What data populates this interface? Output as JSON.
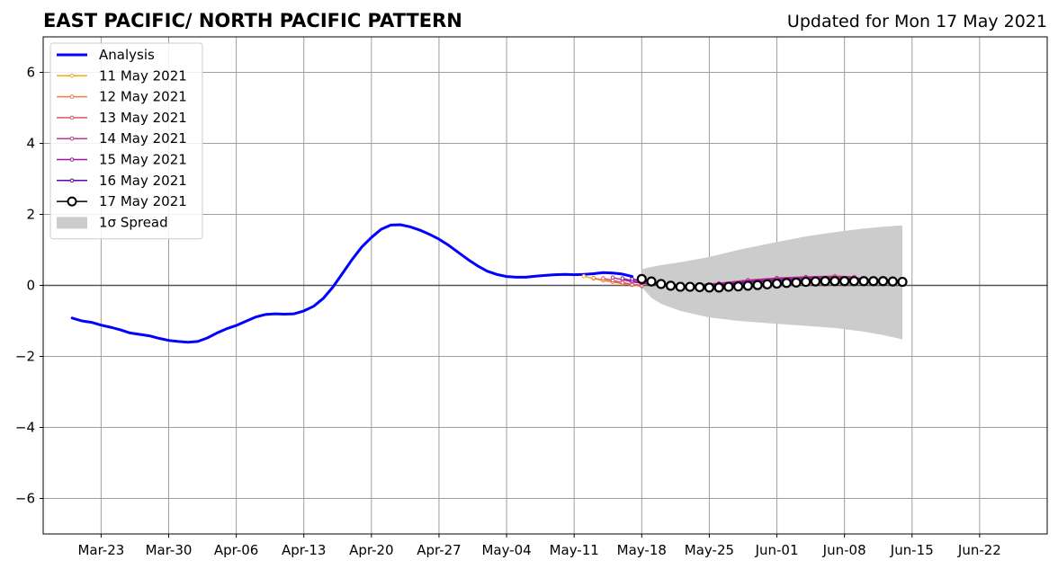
{
  "chart_data": {
    "type": "line",
    "title": "EAST PACIFIC/ NORTH PACIFIC PATTERN",
    "subtitle": "Updated for Mon 17 May 2021",
    "xlabel": "",
    "ylabel": "",
    "ylim": [
      -7,
      7
    ],
    "xlim": [
      "2021-03-17",
      "2021-06-29"
    ],
    "x_ticks": [
      "Mar-23",
      "Mar-30",
      "Apr-06",
      "Apr-13",
      "Apr-20",
      "Apr-27",
      "May-04",
      "May-11",
      "May-18",
      "May-25",
      "Jun-01",
      "Jun-08",
      "Jun-15",
      "Jun-22"
    ],
    "x_tick_dates": [
      "2021-03-23",
      "2021-03-30",
      "2021-04-06",
      "2021-04-13",
      "2021-04-20",
      "2021-04-27",
      "2021-05-04",
      "2021-05-11",
      "2021-05-18",
      "2021-05-25",
      "2021-06-01",
      "2021-06-08",
      "2021-06-15",
      "2021-06-22"
    ],
    "y_ticks": [
      -6,
      -4,
      -2,
      0,
      2,
      4,
      6
    ],
    "y_tick_labels": [
      "−6",
      "−4",
      "−2",
      "0",
      "2",
      "4",
      "6"
    ],
    "grid": true,
    "legend_position": "top-left",
    "series": [
      {
        "name": "Analysis",
        "color": "#0000ff",
        "points": [
          [
            "2021-03-20",
            -0.92
          ],
          [
            "2021-03-21",
            -1.0
          ],
          [
            "2021-03-22",
            -1.04
          ],
          [
            "2021-03-23",
            -1.12
          ],
          [
            "2021-03-24",
            -1.18
          ],
          [
            "2021-03-25",
            -1.25
          ],
          [
            "2021-03-26",
            -1.34
          ],
          [
            "2021-03-27",
            -1.38
          ],
          [
            "2021-03-28",
            -1.42
          ],
          [
            "2021-03-29",
            -1.49
          ],
          [
            "2021-03-30",
            -1.55
          ],
          [
            "2021-03-31",
            -1.58
          ],
          [
            "2021-04-01",
            -1.6
          ],
          [
            "2021-04-02",
            -1.58
          ],
          [
            "2021-04-03",
            -1.48
          ],
          [
            "2021-04-04",
            -1.34
          ],
          [
            "2021-04-05",
            -1.22
          ],
          [
            "2021-04-06",
            -1.13
          ],
          [
            "2021-04-07",
            -1.01
          ],
          [
            "2021-04-08",
            -0.89
          ],
          [
            "2021-04-09",
            -0.82
          ],
          [
            "2021-04-10",
            -0.8
          ],
          [
            "2021-04-11",
            -0.81
          ],
          [
            "2021-04-12",
            -0.8
          ],
          [
            "2021-04-13",
            -0.72
          ],
          [
            "2021-04-14",
            -0.59
          ],
          [
            "2021-04-15",
            -0.37
          ],
          [
            "2021-04-16",
            -0.05
          ],
          [
            "2021-04-17",
            0.34
          ],
          [
            "2021-04-18",
            0.73
          ],
          [
            "2021-04-19",
            1.08
          ],
          [
            "2021-04-20",
            1.35
          ],
          [
            "2021-04-21",
            1.58
          ],
          [
            "2021-04-22",
            1.7
          ],
          [
            "2021-04-23",
            1.71
          ],
          [
            "2021-04-24",
            1.65
          ],
          [
            "2021-04-25",
            1.56
          ],
          [
            "2021-04-26",
            1.44
          ],
          [
            "2021-04-27",
            1.3
          ],
          [
            "2021-04-28",
            1.13
          ],
          [
            "2021-04-29",
            0.93
          ],
          [
            "2021-04-30",
            0.73
          ],
          [
            "2021-05-01",
            0.55
          ],
          [
            "2021-05-02",
            0.4
          ],
          [
            "2021-05-03",
            0.31
          ],
          [
            "2021-05-04",
            0.25
          ],
          [
            "2021-05-05",
            0.23
          ],
          [
            "2021-05-06",
            0.23
          ],
          [
            "2021-05-07",
            0.26
          ],
          [
            "2021-05-08",
            0.28
          ],
          [
            "2021-05-09",
            0.3
          ],
          [
            "2021-05-10",
            0.31
          ],
          [
            "2021-05-11",
            0.3
          ],
          [
            "2021-05-12",
            0.31
          ],
          [
            "2021-05-13",
            0.33
          ],
          [
            "2021-05-14",
            0.36
          ],
          [
            "2021-05-15",
            0.35
          ],
          [
            "2021-05-16",
            0.32
          ],
          [
            "2021-05-17",
            0.25
          ]
        ]
      },
      {
        "name": "11 May 2021",
        "color": "#f7a823",
        "points": [
          [
            "2021-05-12",
            0.26
          ],
          [
            "2021-05-13",
            0.19
          ],
          [
            "2021-05-14",
            0.14
          ],
          [
            "2021-05-15",
            0.1
          ],
          [
            "2021-05-16",
            0.06
          ],
          [
            "2021-05-17",
            0.02
          ],
          [
            "2021-05-18",
            -0.03
          ]
        ]
      },
      {
        "name": "12 May 2021",
        "color": "#ec7f3d",
        "points": [
          [
            "2021-05-13",
            0.21
          ],
          [
            "2021-05-14",
            0.15
          ],
          [
            "2021-05-15",
            0.1
          ],
          [
            "2021-05-16",
            0.05
          ],
          [
            "2021-05-17",
            0.01
          ],
          [
            "2021-05-18",
            -0.02
          ]
        ]
      },
      {
        "name": "13 May 2021",
        "color": "#d8576b",
        "points": [
          [
            "2021-05-14",
            0.2
          ],
          [
            "2021-05-15",
            0.14
          ],
          [
            "2021-05-16",
            0.08
          ],
          [
            "2021-05-17",
            0.03
          ],
          [
            "2021-05-18",
            0.0
          ]
        ]
      },
      {
        "name": "14 May 2021",
        "color": "#bd3786",
        "points": [
          [
            "2021-05-15",
            0.22
          ],
          [
            "2021-05-16",
            0.16
          ],
          [
            "2021-05-17",
            0.1
          ],
          [
            "2021-05-18",
            0.06
          ],
          [
            "2021-05-20",
            0.01
          ],
          [
            "2021-05-23",
            0.0
          ],
          [
            "2021-05-26",
            0.06
          ],
          [
            "2021-05-29",
            0.15
          ],
          [
            "2021-06-01",
            0.21
          ],
          [
            "2021-06-04",
            0.24
          ],
          [
            "2021-06-07",
            0.26
          ],
          [
            "2021-06-09",
            0.24
          ]
        ]
      },
      {
        "name": "15 May 2021",
        "color": "#9c179e",
        "points": [
          [
            "2021-05-16",
            0.2
          ],
          [
            "2021-05-17",
            0.13
          ],
          [
            "2021-05-18",
            0.07
          ],
          [
            "2021-05-20",
            0.0
          ],
          [
            "2021-05-23",
            -0.02
          ],
          [
            "2021-05-26",
            0.04
          ],
          [
            "2021-05-29",
            0.12
          ],
          [
            "2021-06-01",
            0.18
          ],
          [
            "2021-06-04",
            0.21
          ],
          [
            "2021-06-07",
            0.22
          ],
          [
            "2021-06-10",
            0.2
          ]
        ]
      },
      {
        "name": "16 May 2021",
        "color": "#6a00a8",
        "points": [
          [
            "2021-05-17",
            0.18
          ],
          [
            "2021-05-18",
            0.12
          ],
          [
            "2021-05-20",
            0.04
          ],
          [
            "2021-05-23",
            -0.03
          ],
          [
            "2021-05-26",
            0.01
          ],
          [
            "2021-05-29",
            0.08
          ],
          [
            "2021-06-01",
            0.14
          ],
          [
            "2021-06-04",
            0.17
          ],
          [
            "2021-06-07",
            0.18
          ],
          [
            "2021-06-11",
            0.16
          ]
        ]
      },
      {
        "name": "17 May 2021",
        "color": "#000000",
        "marker": "open-circle",
        "points": [
          [
            "2021-05-18",
            0.18
          ],
          [
            "2021-05-19",
            0.11
          ],
          [
            "2021-05-20",
            0.04
          ],
          [
            "2021-05-21",
            -0.01
          ],
          [
            "2021-05-22",
            -0.04
          ],
          [
            "2021-05-23",
            -0.04
          ],
          [
            "2021-05-24",
            -0.05
          ],
          [
            "2021-05-25",
            -0.06
          ],
          [
            "2021-05-26",
            -0.06
          ],
          [
            "2021-05-27",
            -0.04
          ],
          [
            "2021-05-28",
            -0.03
          ],
          [
            "2021-05-29",
            -0.01
          ],
          [
            "2021-05-30",
            0.01
          ],
          [
            "2021-05-31",
            0.03
          ],
          [
            "2021-06-01",
            0.05
          ],
          [
            "2021-06-02",
            0.07
          ],
          [
            "2021-06-03",
            0.08
          ],
          [
            "2021-06-04",
            0.1
          ],
          [
            "2021-06-05",
            0.11
          ],
          [
            "2021-06-06",
            0.12
          ],
          [
            "2021-06-07",
            0.12
          ],
          [
            "2021-06-08",
            0.12
          ],
          [
            "2021-06-09",
            0.12
          ],
          [
            "2021-06-10",
            0.12
          ],
          [
            "2021-06-11",
            0.12
          ],
          [
            "2021-06-12",
            0.12
          ],
          [
            "2021-06-13",
            0.11
          ],
          [
            "2021-06-14",
            0.1
          ]
        ]
      }
    ],
    "spread": {
      "name": "1σ Spread",
      "color": "#cccccc",
      "points": [
        [
          "2021-05-18",
          -0.05,
          0.45
        ],
        [
          "2021-05-19",
          -0.35,
          0.52
        ],
        [
          "2021-05-20",
          -0.52,
          0.57
        ],
        [
          "2021-05-22",
          -0.72,
          0.65
        ],
        [
          "2021-05-25",
          -0.9,
          0.8
        ],
        [
          "2021-05-28",
          -1.0,
          1.0
        ],
        [
          "2021-06-01",
          -1.08,
          1.22
        ],
        [
          "2021-06-04",
          -1.14,
          1.38
        ],
        [
          "2021-06-07",
          -1.2,
          1.5
        ],
        [
          "2021-06-10",
          -1.3,
          1.6
        ],
        [
          "2021-06-12",
          -1.4,
          1.65
        ],
        [
          "2021-06-14",
          -1.52,
          1.69
        ]
      ]
    }
  }
}
